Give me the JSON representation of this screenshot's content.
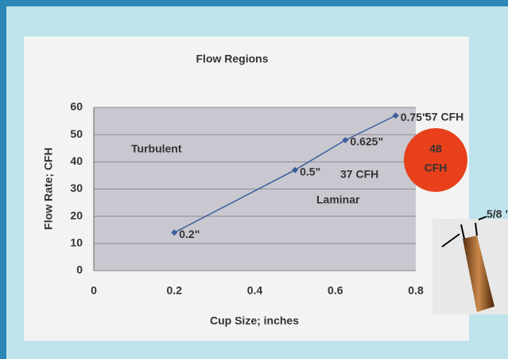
{
  "chart_data": {
    "type": "line",
    "title": "Flow Regions",
    "x_label": "Cup Size; inches",
    "y_label": "Flow Rate; CFH",
    "x": [
      0.2,
      0.5,
      0.625,
      0.75
    ],
    "x_value_labels": [
      "0.2\"",
      "0.5\"",
      "0.625\"",
      "0.75\""
    ],
    "series": [
      {
        "color": "#3a5f9c",
        "values": [
          14,
          37,
          48,
          57
        ]
      }
    ],
    "xlim": [
      0,
      0.8
    ],
    "xticks": [
      0,
      0.2,
      0.4,
      0.6,
      0.8
    ],
    "ylim": [
      0,
      60
    ],
    "yticks": [
      0,
      10,
      20,
      30,
      40,
      50,
      60
    ],
    "grid": true,
    "region_labels": [
      "Turbulent",
      "Laminar"
    ],
    "annotations": [
      "57 CFH",
      "37 CFH"
    ],
    "bubble": [
      "48",
      "CFH"
    ],
    "nozzle_label": "5/8 \""
  }
}
